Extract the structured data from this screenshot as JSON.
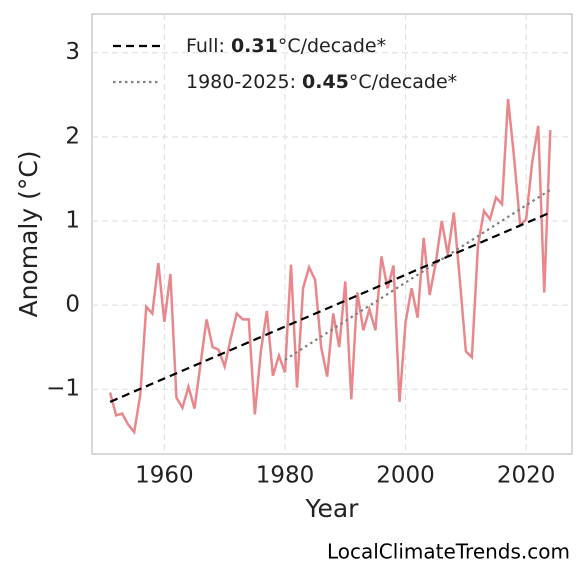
{
  "chart_data": {
    "type": "line",
    "x_label": "Year",
    "y_label": "Anomaly (°C)",
    "source": "LocalClimateTrends.com",
    "xlim": [
      1948,
      2027.6
    ],
    "ylim": [
      -1.77,
      3.46
    ],
    "xticks": [
      1960,
      1980,
      2000,
      2020
    ],
    "yticks": [
      {
        "value": -1,
        "label": "−1"
      },
      0,
      1,
      2,
      3
    ],
    "grid": true,
    "legend": "upper left",
    "series": [
      {
        "name": "Full: 0.31°C/decade*",
        "color": "#000000",
        "dash": "dashed",
        "in_legend": true,
        "x": [
          1951,
          2024
        ],
        "values": [
          -1.15,
          1.1
        ]
      },
      {
        "name": "1980-2025: 0.45°C/decade*",
        "color": "#808080",
        "dash": "dotted",
        "in_legend": true,
        "x": [
          1980,
          2024
        ],
        "values": [
          -0.65,
          1.37
        ]
      },
      {
        "color": "#e8888c",
        "dash": "solid",
        "in_legend": false,
        "x": [
          1951,
          1952,
          1953,
          1954,
          1955,
          1956,
          1957,
          1958,
          1959,
          1960,
          1961,
          1962,
          1963,
          1964,
          1965,
          1966,
          1967,
          1968,
          1969,
          1970,
          1971,
          1972,
          1973,
          1974,
          1975,
          1976,
          1977,
          1978,
          1979,
          1980,
          1981,
          1982,
          1983,
          1984,
          1985,
          1986,
          1987,
          1988,
          1989,
          1990,
          1991,
          1992,
          1993,
          1994,
          1995,
          1996,
          1997,
          1998,
          1999,
          2000,
          2001,
          2002,
          2003,
          2004,
          2005,
          2006,
          2007,
          2008,
          2009,
          2010,
          2011,
          2012,
          2013,
          2014,
          2015,
          2016,
          2017,
          2018,
          2019,
          2020,
          2021,
          2022,
          2023,
          2024
        ],
        "values": [
          -1.04,
          -1.31,
          -1.29,
          -1.42,
          -1.51,
          -1.07,
          -0.02,
          -0.1,
          0.5,
          -0.2,
          0.37,
          -1.1,
          -1.22,
          -0.97,
          -1.23,
          -0.7,
          -0.17,
          -0.5,
          -0.53,
          -0.73,
          -0.4,
          -0.1,
          -0.17,
          -0.17,
          -1.3,
          -0.55,
          -0.07,
          -0.84,
          -0.6,
          -0.8,
          0.48,
          -0.98,
          0.2,
          0.45,
          0.3,
          -0.5,
          -0.85,
          -0.1,
          -0.5,
          0.28,
          -1.12,
          0.15,
          -0.3,
          -0.05,
          -0.3,
          0.58,
          0.2,
          0.47,
          -1.15,
          -0.2,
          0.2,
          -0.15,
          0.8,
          0.12,
          0.5,
          1.0,
          0.6,
          1.1,
          0.3,
          -0.55,
          -0.62,
          0.7,
          1.12,
          1.02,
          1.28,
          1.2,
          2.45,
          1.75,
          0.95,
          1.02,
          1.7,
          2.13,
          0.15,
          2.08
        ]
      }
    ]
  }
}
